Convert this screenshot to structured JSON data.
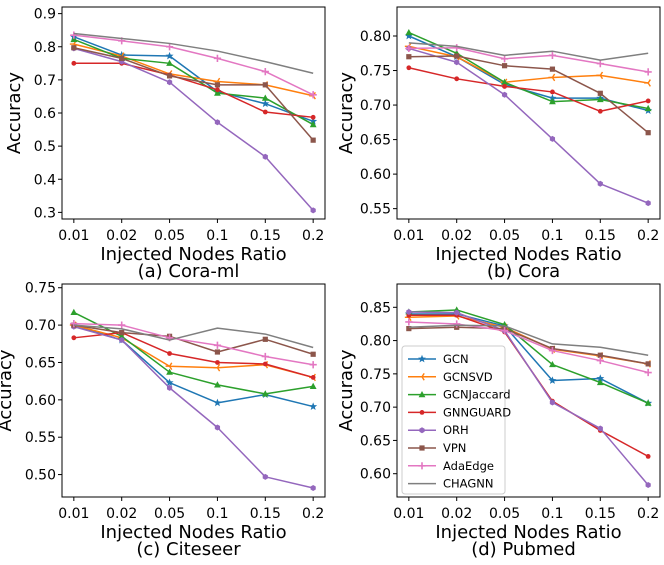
{
  "series_styles": [
    {
      "name": "GCN",
      "color": "#1f77b4",
      "marker": "star"
    },
    {
      "name": "GCNSVD",
      "color": "#ff7f0e",
      "marker": "tri_left"
    },
    {
      "name": "GCNJaccard",
      "color": "#2ca02c",
      "marker": "triangle"
    },
    {
      "name": "GNNGUARD",
      "color": "#d62728",
      "marker": "dot"
    },
    {
      "name": "ORH",
      "color": "#9467bd",
      "marker": "hexagon"
    },
    {
      "name": "VPN",
      "color": "#8c564b",
      "marker": "square"
    },
    {
      "name": "AdaEdge",
      "color": "#e377c2",
      "marker": "plus"
    },
    {
      "name": "CHAGNN",
      "color": "#7f7f7f",
      "marker": "none"
    }
  ],
  "chart_data": [
    {
      "type": "line",
      "caption": "(a) Cora-ml",
      "xlabel": "Injected Nodes Ratio",
      "ylabel": "Accuracy",
      "categories": [
        "0.01",
        "0.02",
        "0.05",
        "0.1",
        "0.15",
        "0.2"
      ],
      "ylim": [
        0.28,
        0.92
      ],
      "yticks": [
        0.3,
        0.4,
        0.5,
        0.6,
        0.7,
        0.8,
        0.9
      ],
      "ytick_labels": [
        "0.3",
        "0.4",
        "0.5",
        "0.6",
        "0.7",
        "0.8",
        "0.9"
      ],
      "series": [
        {
          "name": "GCN",
          "values": [
            0.83,
            0.775,
            0.772,
            0.665,
            0.628,
            0.575
          ]
        },
        {
          "name": "GCNSVD",
          "values": [
            0.808,
            0.772,
            0.718,
            0.695,
            0.685,
            0.652
          ]
        },
        {
          "name": "GCNJaccard",
          "values": [
            0.822,
            0.765,
            0.75,
            0.66,
            0.645,
            0.565
          ]
        },
        {
          "name": "GNNGUARD",
          "values": [
            0.75,
            0.75,
            0.715,
            0.67,
            0.603,
            0.587
          ]
        },
        {
          "name": "ORH",
          "values": [
            0.795,
            0.755,
            0.693,
            0.572,
            0.468,
            0.306
          ]
        },
        {
          "name": "VPN",
          "values": [
            0.797,
            0.765,
            0.712,
            0.685,
            0.685,
            0.518
          ]
        },
        {
          "name": "AdaEdge",
          "values": [
            0.835,
            0.818,
            0.8,
            0.765,
            0.725,
            0.655
          ]
        },
        {
          "name": "CHAGNN",
          "values": [
            0.84,
            0.825,
            0.81,
            0.787,
            0.755,
            0.72
          ]
        }
      ]
    },
    {
      "type": "line",
      "caption": "(b) Cora",
      "xlabel": "Injected Nodes Ratio",
      "ylabel": "Accuracy",
      "categories": [
        "0.01",
        "0.02",
        "0.05",
        "0.1",
        "0.15",
        "0.2"
      ],
      "ylim": [
        0.535,
        0.842
      ],
      "yticks": [
        0.55,
        0.6,
        0.65,
        0.7,
        0.75,
        0.8
      ],
      "ytick_labels": [
        "0.55",
        "0.60",
        "0.65",
        "0.70",
        "0.75",
        "0.80"
      ],
      "series": [
        {
          "name": "GCN",
          "values": [
            0.8,
            0.77,
            0.73,
            0.71,
            0.71,
            0.692
          ]
        },
        {
          "name": "GCNSVD",
          "values": [
            0.785,
            0.77,
            0.733,
            0.74,
            0.743,
            0.732
          ]
        },
        {
          "name": "GCNJaccard",
          "values": [
            0.805,
            0.775,
            0.733,
            0.705,
            0.708,
            0.695
          ]
        },
        {
          "name": "GNNGUARD",
          "values": [
            0.754,
            0.738,
            0.727,
            0.719,
            0.691,
            0.706
          ]
        },
        {
          "name": "ORH",
          "values": [
            0.782,
            0.762,
            0.715,
            0.651,
            0.586,
            0.558
          ]
        },
        {
          "name": "VPN",
          "values": [
            0.77,
            0.771,
            0.757,
            0.752,
            0.717,
            0.66
          ]
        },
        {
          "name": "AdaEdge",
          "values": [
            0.782,
            0.783,
            0.767,
            0.772,
            0.76,
            0.748
          ]
        },
        {
          "name": "CHAGNN",
          "values": [
            0.79,
            0.785,
            0.772,
            0.778,
            0.765,
            0.775
          ]
        }
      ]
    },
    {
      "type": "line",
      "caption": "(c) Citeseer",
      "xlabel": "Injected Nodes Ratio",
      "ylabel": "Accuracy",
      "categories": [
        "0.01",
        "0.02",
        "0.05",
        "0.1",
        "0.15",
        "0.2"
      ],
      "ylim": [
        0.47,
        0.755
      ],
      "yticks": [
        0.5,
        0.55,
        0.6,
        0.65,
        0.7,
        0.75
      ],
      "ytick_labels": [
        "0.50",
        "0.55",
        "0.60",
        "0.65",
        "0.70",
        "0.75"
      ],
      "series": [
        {
          "name": "GCN",
          "values": [
            0.7,
            0.68,
            0.623,
            0.596,
            0.607,
            0.591
          ]
        },
        {
          "name": "GCNSVD",
          "values": [
            0.7,
            0.683,
            0.645,
            0.643,
            0.647,
            0.63
          ]
        },
        {
          "name": "GCNJaccard",
          "values": [
            0.717,
            0.685,
            0.637,
            0.62,
            0.608,
            0.618
          ]
        },
        {
          "name": "GNNGUARD",
          "values": [
            0.683,
            0.69,
            0.662,
            0.65,
            0.648,
            0.63
          ]
        },
        {
          "name": "ORH",
          "values": [
            0.698,
            0.68,
            0.616,
            0.563,
            0.497,
            0.482
          ]
        },
        {
          "name": "VPN",
          "values": [
            0.7,
            0.69,
            0.685,
            0.664,
            0.681,
            0.661
          ]
        },
        {
          "name": "AdaEdge",
          "values": [
            0.702,
            0.7,
            0.683,
            0.673,
            0.658,
            0.647
          ]
        },
        {
          "name": "CHAGNN",
          "values": [
            0.7,
            0.695,
            0.68,
            0.696,
            0.688,
            0.67
          ]
        }
      ]
    },
    {
      "type": "line",
      "caption": "(d) Pubmed",
      "xlabel": "Injected Nodes Ratio",
      "ylabel": "Accuracy",
      "categories": [
        "0.01",
        "0.02",
        "0.05",
        "0.1",
        "0.15",
        "0.2"
      ],
      "ylim": [
        0.565,
        0.885
      ],
      "yticks": [
        0.6,
        0.65,
        0.7,
        0.75,
        0.8,
        0.85
      ],
      "ytick_labels": [
        "0.60",
        "0.65",
        "0.70",
        "0.75",
        "0.80",
        "0.85"
      ],
      "legend_position": "center-left",
      "series": [
        {
          "name": "GCN",
          "values": [
            0.84,
            0.84,
            0.822,
            0.74,
            0.743,
            0.706
          ]
        },
        {
          "name": "GCNSVD",
          "values": [
            0.835,
            0.837,
            0.82,
            0.787,
            0.777,
            0.765
          ]
        },
        {
          "name": "GCNJaccard",
          "values": [
            0.843,
            0.846,
            0.824,
            0.764,
            0.737,
            0.706
          ]
        },
        {
          "name": "GNNGUARD",
          "values": [
            0.838,
            0.838,
            0.813,
            0.709,
            0.665,
            0.626
          ]
        },
        {
          "name": "ORH",
          "values": [
            0.843,
            0.842,
            0.815,
            0.707,
            0.668,
            0.583
          ]
        },
        {
          "name": "VPN",
          "values": [
            0.818,
            0.82,
            0.818,
            0.788,
            0.778,
            0.765
          ]
        },
        {
          "name": "AdaEdge",
          "values": [
            0.828,
            0.825,
            0.815,
            0.785,
            0.77,
            0.752
          ]
        },
        {
          "name": "CHAGNN",
          "values": [
            0.82,
            0.823,
            0.822,
            0.795,
            0.79,
            0.778
          ]
        }
      ]
    }
  ]
}
